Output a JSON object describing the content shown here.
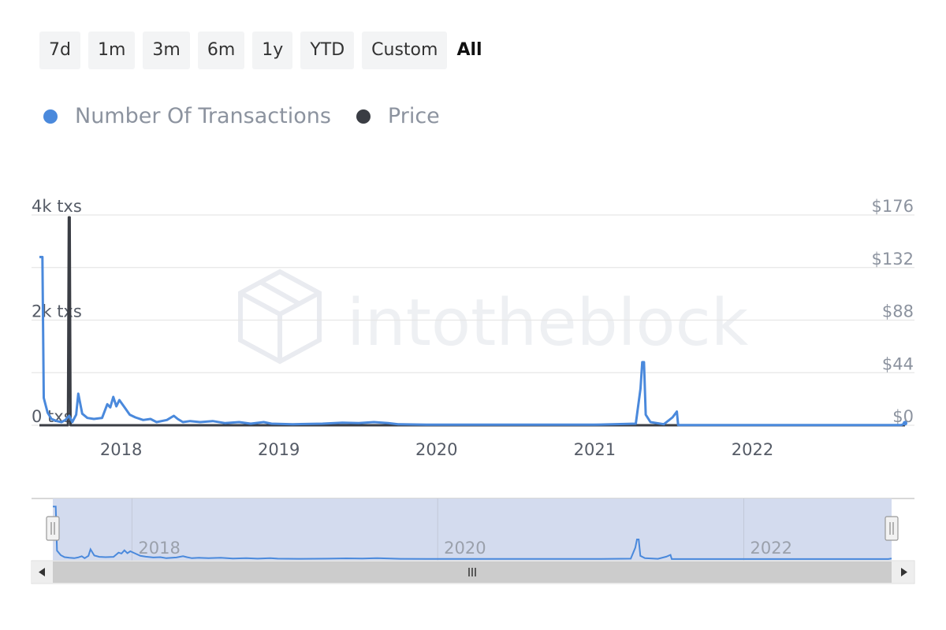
{
  "range_selector": {
    "buttons": [
      "7d",
      "1m",
      "3m",
      "6m",
      "1y",
      "YTD",
      "Custom",
      "All"
    ],
    "active": "All"
  },
  "legend": [
    {
      "label": "Number Of Transactions",
      "color": "#4a89dc"
    },
    {
      "label": "Price",
      "color": "#3a3d44"
    }
  ],
  "watermark": "intotheblock",
  "colors": {
    "tx_line": "#4a89dc",
    "price_line": "#3a3d44",
    "navigator_fill": "#d3dbee"
  },
  "chart_data": {
    "type": "line",
    "title": "",
    "x_axis": {
      "type": "date",
      "range": [
        "2017-06-26",
        "2022-12-20"
      ],
      "tick_labels": [
        "2018",
        "2019",
        "2020",
        "2021",
        "2022"
      ]
    },
    "y_axis_left": {
      "ylim": [
        0,
        4000
      ],
      "tick_labels": [
        "0 txs",
        "2k txs",
        "4k txs"
      ]
    },
    "y_axis_right": {
      "ylim": [
        0,
        176
      ],
      "tick_labels": [
        "$0",
        "$44",
        "$88",
        "$132",
        "$176"
      ]
    },
    "grid": true,
    "legend_position": "top-left",
    "series": [
      {
        "name": "Number Of Transactions",
        "axis": "left",
        "points": [
          [
            "2017-06-26",
            3200
          ],
          [
            "2017-07-03",
            3200
          ],
          [
            "2017-07-06",
            520
          ],
          [
            "2017-07-15",
            240
          ],
          [
            "2017-07-24",
            120
          ],
          [
            "2017-08-05",
            80
          ],
          [
            "2017-08-16",
            60
          ],
          [
            "2017-08-25",
            100
          ],
          [
            "2017-09-03",
            180
          ],
          [
            "2017-09-10",
            60
          ],
          [
            "2017-09-19",
            200
          ],
          [
            "2017-09-24",
            600
          ],
          [
            "2017-10-03",
            220
          ],
          [
            "2017-10-15",
            140
          ],
          [
            "2017-10-30",
            120
          ],
          [
            "2017-11-18",
            140
          ],
          [
            "2017-11-30",
            400
          ],
          [
            "2017-12-07",
            340
          ],
          [
            "2017-12-14",
            540
          ],
          [
            "2017-12-21",
            360
          ],
          [
            "2017-12-28",
            480
          ],
          [
            "2018-01-09",
            340
          ],
          [
            "2018-01-21",
            200
          ],
          [
            "2018-02-03",
            150
          ],
          [
            "2018-02-21",
            100
          ],
          [
            "2018-03-10",
            120
          ],
          [
            "2018-03-24",
            60
          ],
          [
            "2018-04-17",
            100
          ],
          [
            "2018-05-03",
            180
          ],
          [
            "2018-05-12",
            120
          ],
          [
            "2018-05-24",
            60
          ],
          [
            "2018-06-10",
            80
          ],
          [
            "2018-07-03",
            60
          ],
          [
            "2018-08-01",
            80
          ],
          [
            "2018-08-30",
            40
          ],
          [
            "2018-10-01",
            60
          ],
          [
            "2018-10-28",
            30
          ],
          [
            "2018-11-27",
            60
          ],
          [
            "2018-12-15",
            30
          ],
          [
            "2019-02-02",
            20
          ],
          [
            "2019-04-12",
            30
          ],
          [
            "2019-05-28",
            50
          ],
          [
            "2019-07-05",
            40
          ],
          [
            "2019-08-09",
            60
          ],
          [
            "2019-09-11",
            40
          ],
          [
            "2019-10-04",
            20
          ],
          [
            "2019-12-08",
            10
          ],
          [
            "2020-06-01",
            10
          ],
          [
            "2021-01-01",
            10
          ],
          [
            "2021-04-06",
            30
          ],
          [
            "2021-04-17",
            700
          ],
          [
            "2021-04-21",
            1200
          ],
          [
            "2021-04-25",
            1200
          ],
          [
            "2021-04-29",
            200
          ],
          [
            "2021-05-10",
            60
          ],
          [
            "2021-06-10",
            20
          ],
          [
            "2021-06-30",
            150
          ],
          [
            "2021-07-10",
            260
          ],
          [
            "2021-07-13",
            5
          ],
          [
            "2022-06-01",
            5
          ],
          [
            "2022-12-12",
            5
          ],
          [
            "2022-12-20",
            40
          ]
        ]
      },
      {
        "name": "Price",
        "axis": "right",
        "points": [
          [
            "2017-06-26",
            0
          ],
          [
            "2017-08-31",
            0
          ],
          [
            "2017-09-02",
            174
          ],
          [
            "2017-09-04",
            174
          ],
          [
            "2017-09-06",
            0
          ],
          [
            "2022-12-20",
            0
          ]
        ]
      }
    ],
    "navigator": {
      "tick_labels": [
        "2018",
        "2020",
        "2022"
      ],
      "selected_range": [
        "2017-06-26",
        "2022-12-20"
      ]
    }
  }
}
